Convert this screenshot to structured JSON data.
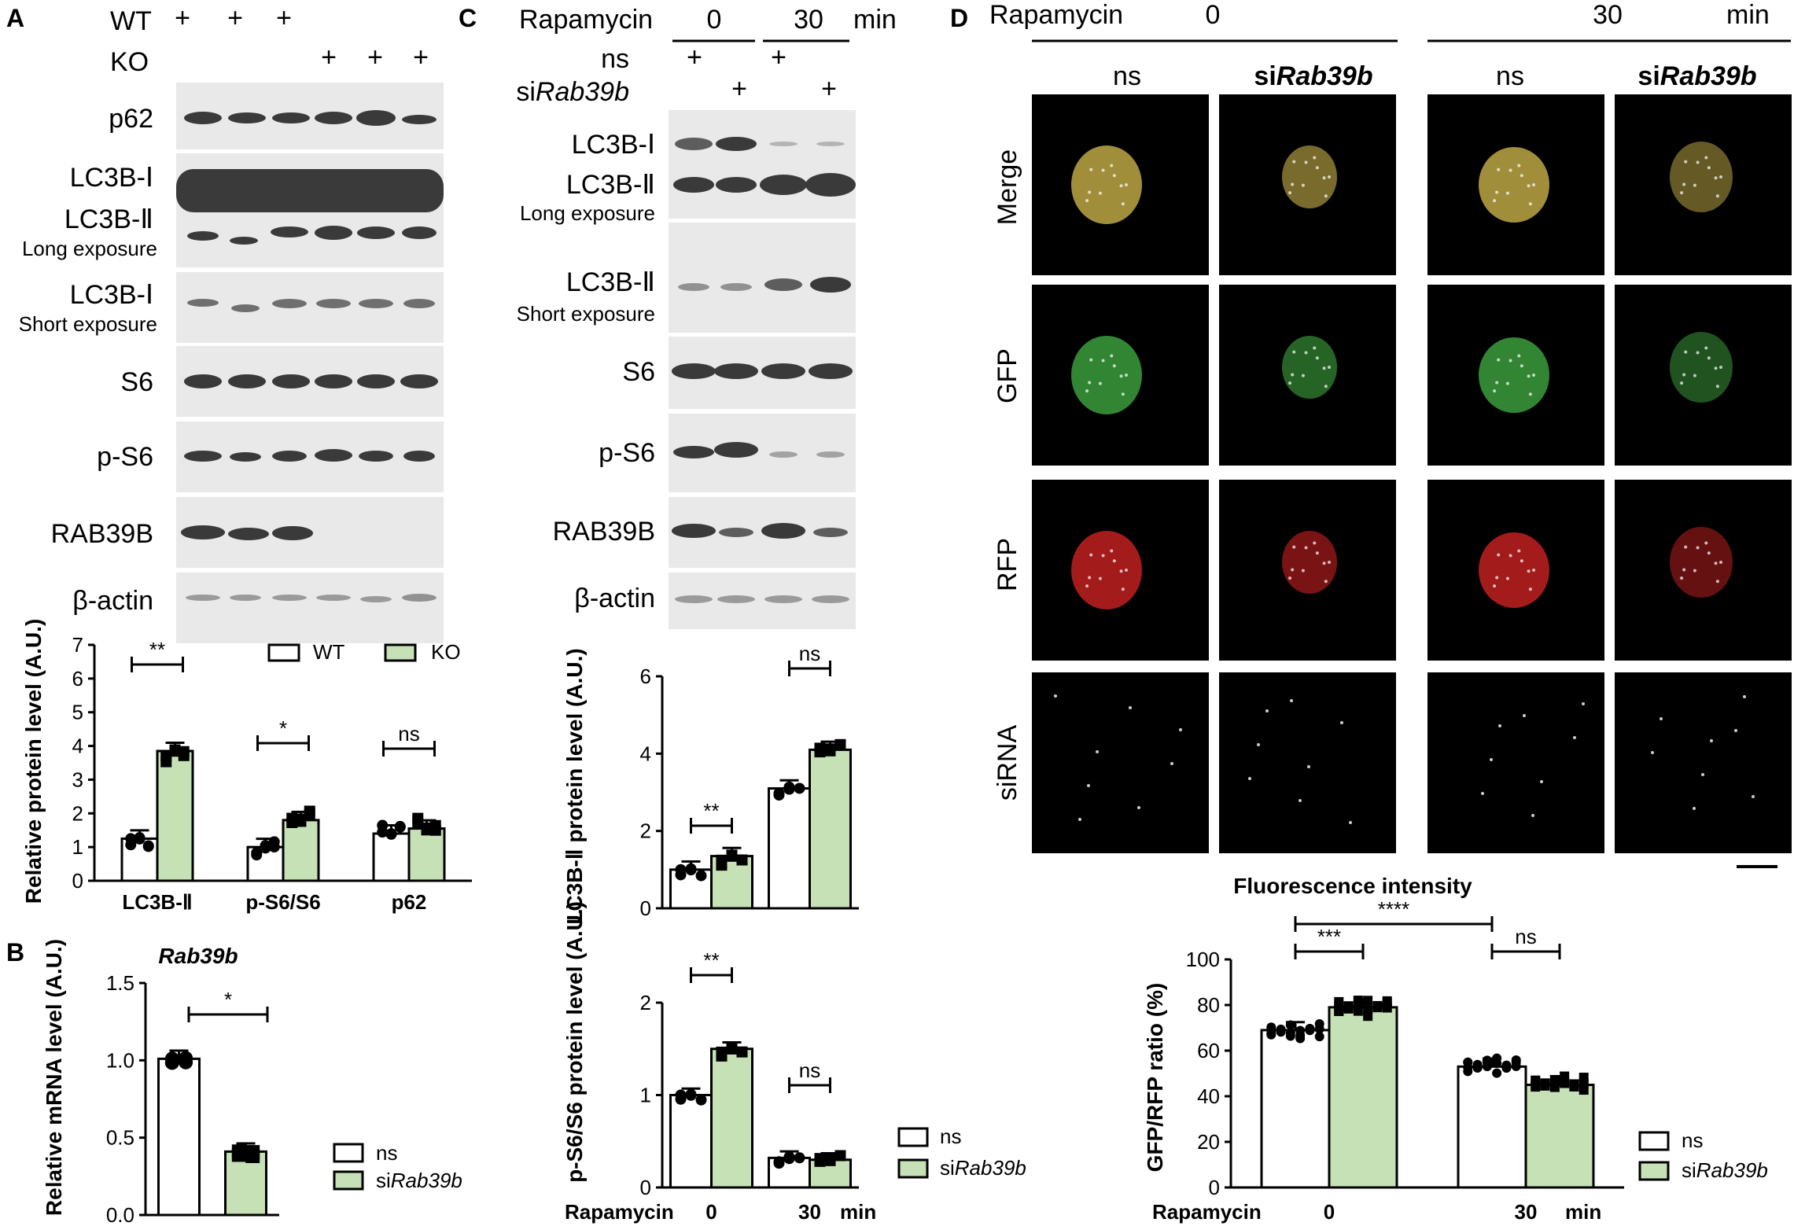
{
  "colors": {
    "bar_control": "#ffffff",
    "bar_treated": "#c5e1b5",
    "blot_bg": "#e9e9e9",
    "band": "#3a3a3a",
    "merge_tint": "#c9b24a",
    "gfp_tint": "#3fa63f",
    "rfp_tint": "#cc2222",
    "sirna_tint": "#cccccc"
  },
  "panelA": {
    "label": "A",
    "wt_label": "WT",
    "ko_label": "KO",
    "plus": "+",
    "blot_rows": [
      "p62",
      "LC3B-Ⅰ",
      "LC3B-Ⅱ",
      "Long exposure",
      "LC3B-Ⅰ",
      "Short exposure",
      "S6",
      "p-S6",
      "RAB39B",
      "β-actin"
    ],
    "chart_data": {
      "type": "bar",
      "categories": [
        "LC3B-Ⅱ",
        "p-S6/S6",
        "p62"
      ],
      "series": [
        {
          "name": "WT",
          "values": [
            1.25,
            1.0,
            1.4
          ]
        },
        {
          "name": "KO",
          "values": [
            3.85,
            1.8,
            1.55
          ]
        }
      ],
      "ylabel": "Relative protein level (A.U.)",
      "ylim": [
        0,
        7
      ],
      "yticks": [
        "0",
        "1",
        "2",
        "3",
        "4",
        "5",
        "6",
        "7"
      ],
      "significance": [
        "**",
        "*",
        "ns"
      ]
    }
  },
  "panelB": {
    "label": "B",
    "chart_data": {
      "type": "bar",
      "title": "Rab39b",
      "categories": [
        "ns",
        "siRab39b"
      ],
      "values": [
        1.01,
        0.41
      ],
      "ylabel": "Relative mRNA level (A.U.)",
      "ylim": [
        0,
        1.5
      ],
      "yticks": [
        "0.0",
        "0.5",
        "1.0",
        "1.5"
      ],
      "significance": [
        "*"
      ],
      "legend": [
        "ns",
        "siRab39b"
      ]
    }
  },
  "panelC": {
    "label": "C",
    "rapamycin_label": "Rapamycin",
    "time0": "0",
    "time30": "30",
    "min_label": "min",
    "ns_label": "ns",
    "si_prefix": "si",
    "si_gene": "Rab39b",
    "plus": "+",
    "blot_rows": [
      "LC3B-Ⅰ",
      "LC3B-Ⅱ",
      "Long exposure",
      "LC3B-Ⅱ",
      "Short exposure",
      "S6",
      "p-S6",
      "RAB39B",
      "β-actin"
    ],
    "chart_data": [
      {
        "type": "bar",
        "categories": [
          "0",
          "30"
        ],
        "series": [
          {
            "name": "ns",
            "values": [
              1.0,
              3.1
            ]
          },
          {
            "name": "siRab39b",
            "values": [
              1.35,
              4.1
            ]
          }
        ],
        "ylabel": "LC3B-Ⅱ protein level (A.U.)",
        "ylim": [
          0,
          6
        ],
        "yticks": [
          "0",
          "2",
          "4",
          "6"
        ],
        "significance": [
          "**",
          "ns"
        ]
      },
      {
        "type": "bar",
        "categories": [
          "0",
          "30"
        ],
        "series": [
          {
            "name": "ns",
            "values": [
              1.0,
              0.32
            ]
          },
          {
            "name": "siRab39b",
            "values": [
              1.5,
              0.3
            ]
          }
        ],
        "ylabel": "p-S6/S6 protein level (A.U.)",
        "xlabel": "Rapamycin",
        "xunit": "min",
        "ylim": [
          0,
          2
        ],
        "yticks": [
          "0",
          "1",
          "2"
        ],
        "significance": [
          "**",
          "ns"
        ],
        "legend": [
          "ns",
          "siRab39b"
        ]
      }
    ]
  },
  "panelD": {
    "label": "D",
    "rapamycin_label": "Rapamycin",
    "time0": "0",
    "time30": "30",
    "min_label": "min",
    "col_labels": [
      "ns",
      "siRab39b",
      "ns",
      "siRab39b"
    ],
    "row_labels": [
      "Merge",
      "GFP",
      "RFP",
      "siRNA"
    ],
    "chart_data": {
      "type": "bar",
      "title": "Fluorescence intensity",
      "categories": [
        "0",
        "30"
      ],
      "series": [
        {
          "name": "ns",
          "values": [
            69,
            53
          ]
        },
        {
          "name": "siRab39b",
          "values": [
            79,
            45
          ]
        }
      ],
      "ylabel": "GFP/RFP ratio (%)",
      "xlabel": "Rapamycin",
      "xunit": "min",
      "ylim": [
        0,
        100
      ],
      "yticks": [
        "0",
        "20",
        "40",
        "60",
        "80",
        "100"
      ],
      "significance": [
        "****",
        "***",
        "ns"
      ],
      "legend": [
        "ns",
        "siRab39b"
      ]
    }
  }
}
